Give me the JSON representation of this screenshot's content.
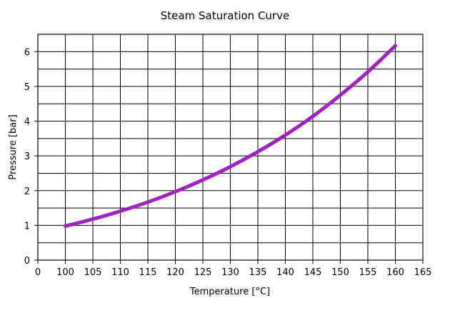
{
  "chart_data": {
    "type": "line",
    "title": "Steam Saturation Curve",
    "xlabel": "Temperature [°C]",
    "ylabel": "Pressure [bar]",
    "xlim": [
      0,
      165
    ],
    "ylim": [
      0,
      6.5
    ],
    "x_ticks": [
      0,
      100,
      105,
      110,
      115,
      120,
      125,
      130,
      135,
      140,
      145,
      150,
      155,
      160,
      165
    ],
    "y_ticks": [
      0,
      1,
      2,
      3,
      4,
      5,
      6
    ],
    "x_axis_break": "0 then 100–165",
    "grid": true,
    "series": [
      {
        "color": "#a020c0",
        "x": [
          100,
          105,
          110,
          115,
          120,
          125,
          130,
          135,
          140,
          145,
          150,
          155,
          160
        ],
        "y": [
          0.98,
          1.18,
          1.41,
          1.67,
          1.97,
          2.31,
          2.69,
          3.12,
          3.6,
          4.14,
          4.75,
          5.42,
          6.17
        ]
      }
    ]
  }
}
